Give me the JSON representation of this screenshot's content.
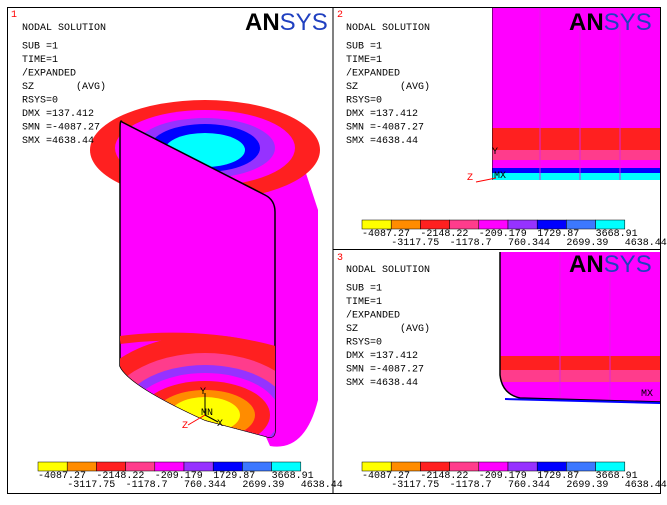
{
  "legend_colors": [
    "#ffff00",
    "#ff8c00",
    "#ff2020",
    "#ff3c8c",
    "#ff00ff",
    "#9632ff",
    "#0000ff",
    "#3c78ff",
    "#00ffff"
  ],
  "panels": [
    {
      "number": "1",
      "logo": [
        "AN",
        "SYS"
      ],
      "lines": [
        "NODAL SOLUTION",
        "SUB =1",
        "TIME=1",
        "/EXPANDED",
        "SZ       (AVG)",
        "RSYS=0",
        "DMX =137.412",
        "SMN =-4087.27",
        "SMX =4638.44"
      ],
      "legend": {
        "top": [
          "-4087.27",
          "-2148.22",
          "-209.179",
          "1729.87",
          "3668.91"
        ],
        "bottom": [
          "-3117.75",
          "-1178.7",
          "760.344",
          "2699.39",
          "4638.44"
        ]
      },
      "triad": [
        "Y",
        "Z",
        "X",
        "MN"
      ]
    },
    {
      "number": "2",
      "logo": [
        "AN",
        "SYS"
      ],
      "lines": [
        "NODAL SOLUTION",
        "SUB =1",
        "TIME=1",
        "/EXPANDED",
        "SZ       (AVG)",
        "RSYS=0",
        "DMX =137.412",
        "SMN =-4087.27",
        "SMX =4638.44"
      ],
      "legend": {
        "top": [
          "-4087.27",
          "-2148.22",
          "-209.179",
          "1729.87",
          "3668.91"
        ],
        "bottom": [
          "-3117.75",
          "-1178.7",
          "760.344",
          "2699.39",
          "4638.44"
        ]
      },
      "triad": [
        "Y",
        "Z",
        "MX"
      ]
    },
    {
      "number": "3",
      "logo": [
        "AN",
        "SYS"
      ],
      "lines": [
        "NODAL SOLUTION",
        "SUB =1",
        "TIME=1",
        "/EXPANDED",
        "SZ       (AVG)",
        "RSYS=0",
        "DMX =137.412",
        "SMN =-4087.27",
        "SMX =4638.44"
      ],
      "legend": {
        "top": [
          "-4087.27",
          "-2148.22",
          "-209.179",
          "1729.87",
          "3668.91"
        ],
        "bottom": [
          "-3117.75",
          "-1178.7",
          "760.344",
          "2699.39",
          "4638.44"
        ]
      },
      "triad": [
        "MX"
      ]
    }
  ]
}
